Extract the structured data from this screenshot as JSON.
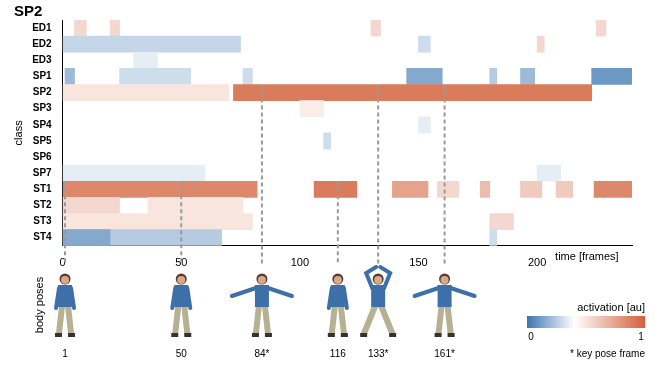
{
  "chart_data": {
    "type": "heatmap",
    "title": "SP2",
    "x_label": "time [frames]",
    "y_label": "class",
    "categories": [
      "ED1",
      "ED2",
      "ED3",
      "SP1",
      "SP2",
      "SP3",
      "SP4",
      "SP5",
      "SP6",
      "SP7",
      "ST1",
      "ST2",
      "ST3",
      "ST4"
    ],
    "xlim": [
      0,
      240
    ],
    "xticks": [
      0,
      50,
      100,
      150,
      200
    ],
    "cells": [
      {
        "class": "ED1",
        "start": 5,
        "end": 10,
        "value": 0.55
      },
      {
        "class": "ED1",
        "start": 20,
        "end": 24,
        "value": 0.55
      },
      {
        "class": "ED1",
        "start": 130,
        "end": 134,
        "value": 0.55
      },
      {
        "class": "ED1",
        "start": 225,
        "end": 229,
        "value": 0.55
      },
      {
        "class": "ED2",
        "start": 0,
        "end": 75,
        "value": 0.28
      },
      {
        "class": "ED2",
        "start": 150,
        "end": 155,
        "value": 0.3
      },
      {
        "class": "ED2",
        "start": 200,
        "end": 203,
        "value": 0.55
      },
      {
        "class": "ED3",
        "start": 30,
        "end": 40,
        "value": 0.35
      },
      {
        "class": "SP1",
        "start": 1,
        "end": 5,
        "value": 0.2
      },
      {
        "class": "SP1",
        "start": 24,
        "end": 54,
        "value": 0.3
      },
      {
        "class": "SP1",
        "start": 76,
        "end": 80,
        "value": 0.3
      },
      {
        "class": "SP1",
        "start": 145,
        "end": 160,
        "value": 0.15
      },
      {
        "class": "SP1",
        "start": 180,
        "end": 183,
        "value": 0.25
      },
      {
        "class": "SP1",
        "start": 193,
        "end": 199,
        "value": 0.2
      },
      {
        "class": "SP1",
        "start": 223,
        "end": 240,
        "value": 0.1
      },
      {
        "class": "SP2",
        "start": 0,
        "end": 70,
        "value": 0.5
      },
      {
        "class": "SP2",
        "start": 72,
        "end": 223,
        "value": 0.9
      },
      {
        "class": "SP3",
        "start": 100,
        "end": 110,
        "value": 0.47
      },
      {
        "class": "SP4",
        "start": 150,
        "end": 155,
        "value": 0.35
      },
      {
        "class": "SP5",
        "start": 110,
        "end": 113,
        "value": 0.3
      },
      {
        "class": "SP7",
        "start": 0,
        "end": 60,
        "value": 0.35
      },
      {
        "class": "SP7",
        "start": 200,
        "end": 210,
        "value": 0.35
      },
      {
        "class": "ST1",
        "start": 0,
        "end": 82,
        "value": 0.85
      },
      {
        "class": "ST1",
        "start": 106,
        "end": 124,
        "value": 0.9
      },
      {
        "class": "ST1",
        "start": 139,
        "end": 154,
        "value": 0.75
      },
      {
        "class": "ST1",
        "start": 158,
        "end": 167,
        "value": 0.55
      },
      {
        "class": "ST1",
        "start": 176,
        "end": 180,
        "value": 0.65
      },
      {
        "class": "ST1",
        "start": 193,
        "end": 202,
        "value": 0.6
      },
      {
        "class": "ST1",
        "start": 208,
        "end": 215,
        "value": 0.6
      },
      {
        "class": "ST1",
        "start": 224,
        "end": 240,
        "value": 0.85
      },
      {
        "class": "ST2",
        "start": 0,
        "end": 24,
        "value": 0.55
      },
      {
        "class": "ST2",
        "start": 36,
        "end": 76,
        "value": 0.5
      },
      {
        "class": "ST3",
        "start": 0,
        "end": 80,
        "value": 0.5
      },
      {
        "class": "ST3",
        "start": 180,
        "end": 190,
        "value": 0.55
      },
      {
        "class": "ST4",
        "start": 0,
        "end": 67,
        "value": 0.25
      },
      {
        "class": "ST4",
        "start": 0,
        "end": 20,
        "value": 0.15
      },
      {
        "class": "ST4",
        "start": 180,
        "end": 183,
        "value": 0.3
      }
    ],
    "colorbar": {
      "label": "activation [au]",
      "range": [
        0,
        1
      ],
      "ticks": [
        0,
        1
      ]
    },
    "poses": {
      "label": "body poses",
      "frames": [
        {
          "value": 1,
          "label": "1"
        },
        {
          "value": 50,
          "label": "50"
        },
        {
          "value": 84,
          "label": "84*"
        },
        {
          "value": 116,
          "label": "116"
        },
        {
          "value": 133,
          "label": "133*"
        },
        {
          "value": 161,
          "label": "161*"
        }
      ],
      "note": "* key pose frame"
    }
  }
}
